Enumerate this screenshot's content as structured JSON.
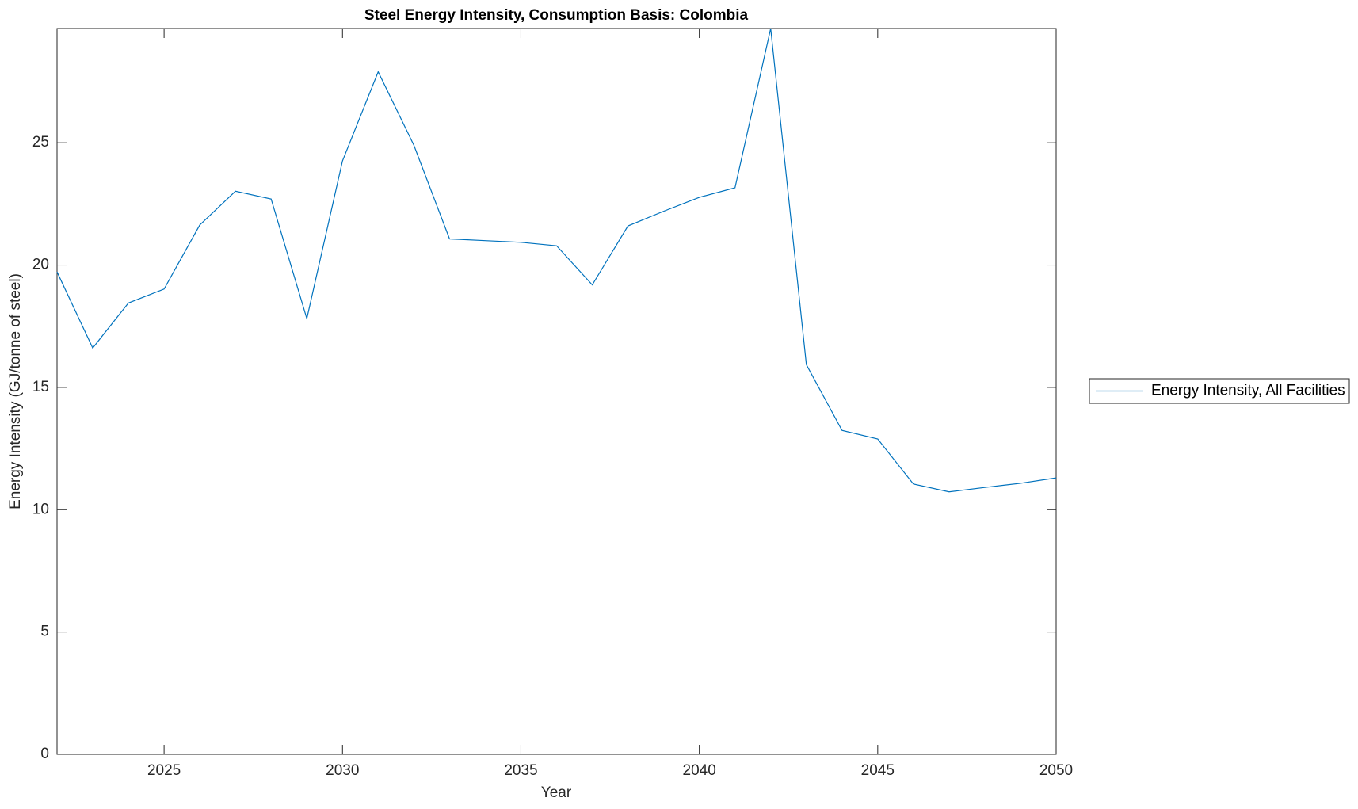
{
  "chart_data": {
    "type": "line",
    "title": "Steel Energy Intensity, Consumption Basis: Colombia",
    "x_label": "Year",
    "y_label": "Energy Intensity (GJ/tonne of steel)",
    "x": [
      2022,
      2023,
      2024,
      2025,
      2026,
      2027,
      2028,
      2029,
      2030,
      2031,
      2032,
      2033,
      2034,
      2035,
      2036,
      2037,
      2038,
      2039,
      2040,
      2041,
      2042,
      2043,
      2044,
      2045,
      2046,
      2047,
      2048,
      2049,
      2050
    ],
    "series": [
      {
        "name": "Energy Intensity, All Facilities",
        "color": "#0072bd",
        "values": [
          19.72,
          16.61,
          18.45,
          19.02,
          21.64,
          23.02,
          22.7,
          17.81,
          24.26,
          27.9,
          24.9,
          21.07,
          21.0,
          20.93,
          20.79,
          19.19,
          21.6,
          22.2,
          22.77,
          23.16,
          29.67,
          15.93,
          13.24,
          12.89,
          11.05,
          10.73,
          10.91,
          11.08,
          11.3
        ]
      }
    ],
    "xlim": [
      2022,
      2050
    ],
    "xticks": [
      2025,
      2030,
      2035,
      2040,
      2045,
      2050
    ],
    "ylim": [
      0,
      29.67
    ],
    "yticks": [
      0,
      5,
      10,
      15,
      20,
      25
    ],
    "grid": false,
    "legend": "east-outside"
  }
}
